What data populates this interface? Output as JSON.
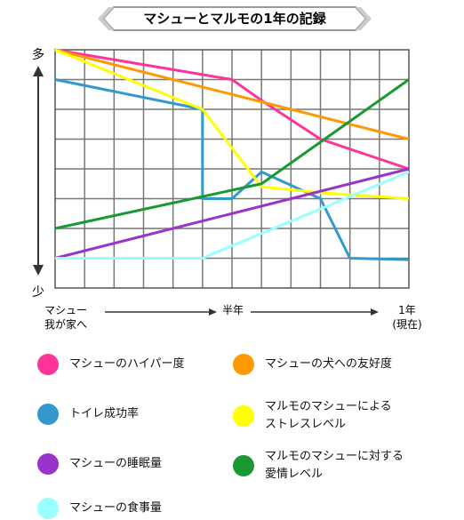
{
  "chart_data": {
    "type": "line",
    "title": "マシューとマルモの1年の記録",
    "y_axis": {
      "top_label": "多",
      "bottom_label": "少",
      "range": [
        0,
        8
      ]
    },
    "x_axis": {
      "start_label": "マシュー\n我が家へ",
      "mid_label": "半年",
      "end_label": "1年\n(現在)",
      "range": [
        0,
        12
      ]
    },
    "grid": true,
    "legend_position": "bottom",
    "series": [
      {
        "name": "マシューのハイパー度",
        "color": "#ff3399",
        "points": [
          [
            0,
            8
          ],
          [
            6,
            7
          ],
          [
            7,
            6.3
          ],
          [
            9,
            5
          ],
          [
            12,
            4
          ]
        ]
      },
      {
        "name": "マシューの犬への友好度",
        "color": "#ff9900",
        "points": [
          [
            0,
            8
          ],
          [
            12,
            5
          ]
        ]
      },
      {
        "name": "トイレ成功率",
        "color": "#3399cc",
        "points": [
          [
            0,
            7
          ],
          [
            5,
            6
          ],
          [
            5,
            3
          ],
          [
            6,
            3
          ],
          [
            7,
            3.9
          ],
          [
            9,
            3
          ],
          [
            10,
            1
          ],
          [
            12,
            0.95
          ]
        ]
      },
      {
        "name": "マルモのマシューによる\nストレスレベル",
        "color": "#ffff00",
        "points": [
          [
            0,
            8
          ],
          [
            5,
            6
          ],
          [
            7,
            3.4
          ],
          [
            9,
            3.2
          ],
          [
            12,
            3
          ]
        ]
      },
      {
        "name": "マシューの睡眠量",
        "color": "#9933cc",
        "points": [
          [
            0,
            1
          ],
          [
            12,
            4
          ]
        ]
      },
      {
        "name": "マルモのマシューに対する\n愛情レベル",
        "color": "#1a9933",
        "points": [
          [
            0,
            2
          ],
          [
            7,
            3.5
          ],
          [
            12,
            7
          ]
        ]
      },
      {
        "name": "マシューの食事量",
        "color": "#99ffff",
        "points": [
          [
            0,
            1
          ],
          [
            5,
            1
          ],
          [
            12,
            3.9
          ]
        ]
      }
    ]
  }
}
